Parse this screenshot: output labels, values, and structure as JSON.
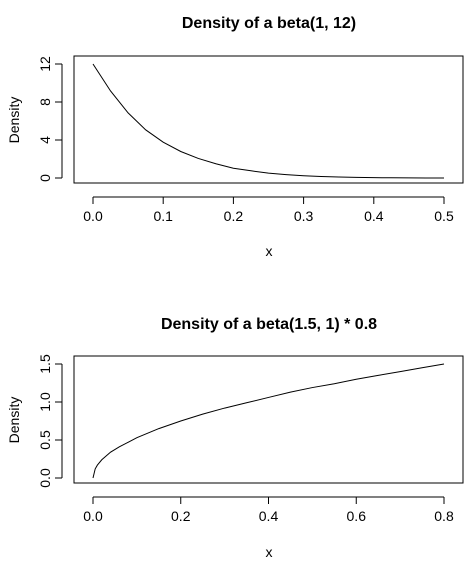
{
  "chart_data": [
    {
      "type": "line",
      "title": "Density of a beta(1, 12)",
      "xlabel": "x",
      "ylabel": "Density",
      "xlim": [
        0,
        0.5
      ],
      "ylim": [
        0,
        12
      ],
      "xticks": [
        0.0,
        0.1,
        0.2,
        0.3,
        0.4,
        0.5
      ],
      "xtick_labels": [
        "0.0",
        "0.1",
        "0.2",
        "0.3",
        "0.4",
        "0.5"
      ],
      "yticks": [
        0,
        4,
        8,
        12
      ],
      "ytick_labels": [
        "0",
        "4",
        "8",
        "12"
      ],
      "grid": false,
      "series": [
        {
          "x": [
            0,
            0.025,
            0.05,
            0.075,
            0.1,
            0.125,
            0.15,
            0.175,
            0.2,
            0.225,
            0.25,
            0.275,
            0.3,
            0.325,
            0.35,
            0.375,
            0.4,
            0.425,
            0.45,
            0.475,
            0.5
          ],
          "y": [
            12.0,
            9.16,
            6.85,
            5.07,
            3.77,
            2.79,
            2.06,
            1.5,
            1.03,
            0.76,
            0.51,
            0.36,
            0.24,
            0.16,
            0.1,
            0.06,
            0.04,
            0.02,
            0.01,
            0.0,
            0.0
          ]
        }
      ]
    },
    {
      "type": "line",
      "title": "Density of a beta(1.5, 1) * 0.8",
      "xlabel": "x",
      "ylabel": "Density",
      "xlim": [
        0,
        0.8
      ],
      "ylim": [
        0,
        1.5
      ],
      "xticks": [
        0.0,
        0.2,
        0.4,
        0.6,
        0.8
      ],
      "xtick_labels": [
        "0.0",
        "0.2",
        "0.4",
        "0.6",
        "0.8"
      ],
      "yticks": [
        0.0,
        0.5,
        1.0,
        1.5
      ],
      "ytick_labels": [
        "0.0",
        "0.5",
        "1.0",
        "1.5"
      ],
      "grid": false,
      "series": [
        {
          "x": [
            0,
            0.005,
            0.01,
            0.02,
            0.04,
            0.06,
            0.08,
            0.1,
            0.15,
            0.2,
            0.25,
            0.3,
            0.35,
            0.4,
            0.45,
            0.5,
            0.55,
            0.6,
            0.65,
            0.7,
            0.75,
            0.8
          ],
          "y": [
            0.0,
            0.12,
            0.17,
            0.24,
            0.34,
            0.41,
            0.47,
            0.53,
            0.65,
            0.75,
            0.84,
            0.92,
            0.99,
            1.06,
            1.13,
            1.19,
            1.24,
            1.3,
            1.35,
            1.4,
            1.45,
            1.5
          ]
        }
      ]
    }
  ]
}
